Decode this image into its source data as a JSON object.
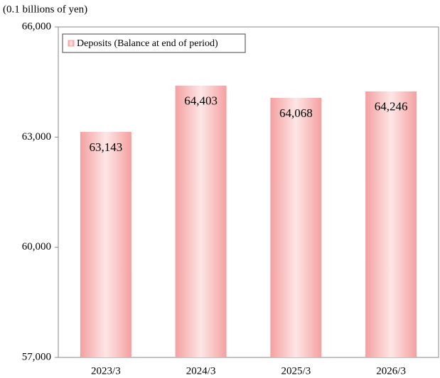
{
  "chart_data": {
    "type": "bar",
    "y_axis_label": "(0.1 billions  of yen)",
    "categories": [
      "2023/3",
      "2024/3",
      "2025/3",
      "2026/3"
    ],
    "series": [
      {
        "name": "Deposits (Balance at end of period)",
        "color": "#f4a0a0",
        "values": [
          63143,
          64403,
          64068,
          64246
        ]
      }
    ],
    "value_labels": [
      "63,143",
      "64,403",
      "64,068",
      "64,246"
    ],
    "ylim": [
      57000,
      66000
    ],
    "yticks": [
      {
        "value": 57000,
        "label": "57,000"
      },
      {
        "value": 60000,
        "label": "60,000"
      },
      {
        "value": 63000,
        "label": "63,000"
      },
      {
        "value": 66000,
        "label": "66,000"
      }
    ],
    "grid": false,
    "legend": "upper left"
  }
}
